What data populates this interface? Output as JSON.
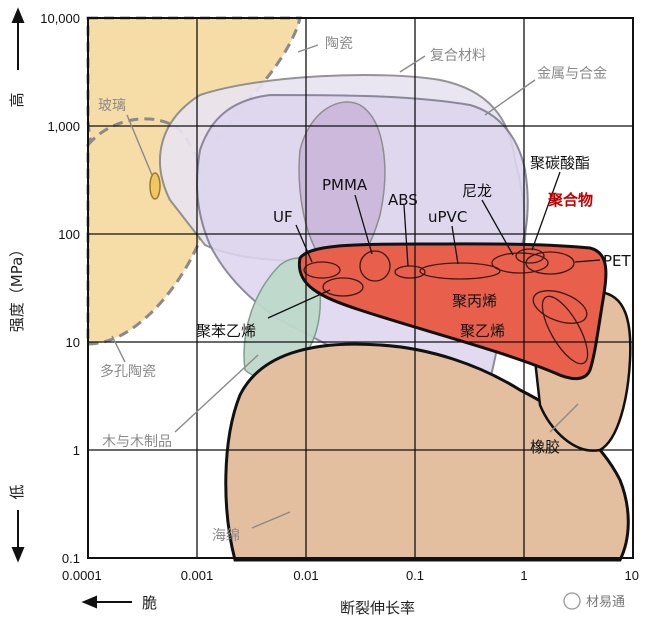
{
  "chart_data": {
    "type": "area",
    "title": "",
    "xlabel": "断裂伸长率",
    "ylabel": "强度（MPa）",
    "x_scale": "log",
    "y_scale": "log",
    "xlim": [
      0.0001,
      10
    ],
    "ylim": [
      0.1,
      10000
    ],
    "grid": true,
    "x_ticks": [
      "0.0001",
      "0.001",
      "0.01",
      "0.1",
      "1",
      "10"
    ],
    "y_ticks": [
      "0.1",
      "1",
      "10",
      "100",
      "1,000",
      "10,000"
    ],
    "y_axis_high": "高",
    "y_axis_low": "低",
    "x_axis_brittle": "脆",
    "regions": [
      {
        "name": "陶瓷",
        "x_range": [
          0.0001,
          0.002
        ],
        "y_range": [
          150,
          10000
        ],
        "color": "#f6dca6",
        "outline": "dashed"
      },
      {
        "name": "多孔陶瓷",
        "x_range": [
          0.0001,
          0.0013
        ],
        "y_range": [
          12,
          1500
        ],
        "color": "#f6dca6",
        "outline": "dashed"
      },
      {
        "name": "玻璃",
        "x_range": [
          0.00045,
          0.00052
        ],
        "y_range": [
          250,
          500
        ],
        "color": "#f0c860"
      },
      {
        "name": "复合材料",
        "x_range": [
          0.0012,
          0.6
        ],
        "y_range": [
          5,
          3000
        ],
        "color": "#ddd6ee"
      },
      {
        "name": "金属与合金",
        "x_range": [
          0.0007,
          1
        ],
        "y_range": [
          60,
          1800
        ],
        "color": "#e9e4f0"
      },
      {
        "name": "木与木制品",
        "x_range": [
          0.0035,
          0.035
        ],
        "y_range": [
          4,
          110
        ],
        "color": "#bfd9cc"
      },
      {
        "name": "海绵",
        "x_range": [
          0.0015,
          8
        ],
        "y_range": [
          0.1,
          13
        ],
        "color": "#e3bfa0"
      },
      {
        "name": "橡胶",
        "x_range": [
          1.3,
          7
        ],
        "y_range": [
          2.5,
          30
        ],
        "color": "#e3bfa0"
      },
      {
        "name": "聚合物",
        "x_range": [
          0.0085,
          7
        ],
        "y_range": [
          7,
          90
        ],
        "color": "#e8604c"
      }
    ],
    "points": [
      {
        "name": "PMMA",
        "x": 0.04,
        "y": 55
      },
      {
        "name": "ABS",
        "x": 0.1,
        "y": 45
      },
      {
        "name": "UF",
        "x": 0.012,
        "y": 45
      },
      {
        "name": "uPVC",
        "x": 0.3,
        "y": 50
      },
      {
        "name": "尼龙",
        "x": 1,
        "y": 60
      },
      {
        "name": "聚碳酸酯",
        "x": 1.5,
        "y": 60
      },
      {
        "name": "PET",
        "x": 3,
        "y": 55
      },
      {
        "name": "聚丙烯",
        "x": 2,
        "y": 28
      },
      {
        "name": "聚乙烯",
        "x": 3,
        "y": 18
      },
      {
        "name": "聚苯乙烯",
        "x": 0.02,
        "y": 35
      }
    ]
  },
  "watermark": "材易通",
  "colors": {
    "frame": "#111111",
    "grid": "#111111",
    "polymer": "#e8604c",
    "highlight_text": "#c00000"
  }
}
